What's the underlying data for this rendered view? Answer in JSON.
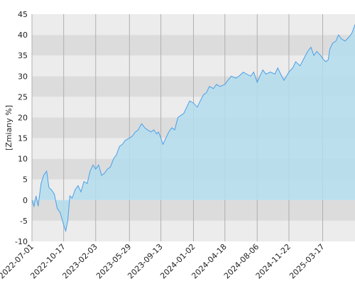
{
  "chart_data": {
    "type": "area",
    "y_label": "[Zmiany %]",
    "x": [
      "2022-07-01",
      "2022-07-08",
      "2022-07-15",
      "2022-07-22",
      "2022-08-01",
      "2022-08-10",
      "2022-08-20",
      "2022-08-28",
      "2022-09-05",
      "2022-09-15",
      "2022-09-25",
      "2022-10-05",
      "2022-10-17",
      "2022-10-24",
      "2022-10-31",
      "2022-11-07",
      "2022-11-15",
      "2022-11-25",
      "2022-12-05",
      "2022-12-15",
      "2022-12-25",
      "2023-01-05",
      "2023-01-15",
      "2023-01-25",
      "2023-02-03",
      "2023-02-13",
      "2023-02-23",
      "2023-03-05",
      "2023-03-15",
      "2023-03-25",
      "2023-04-05",
      "2023-04-15",
      "2023-04-25",
      "2023-05-05",
      "2023-05-15",
      "2023-05-29",
      "2023-06-08",
      "2023-06-18",
      "2023-06-28",
      "2023-07-05",
      "2023-07-10",
      "2023-07-20",
      "2023-07-30",
      "2023-08-10",
      "2023-08-20",
      "2023-08-30",
      "2023-09-05",
      "2023-09-13",
      "2023-09-20",
      "2023-09-30",
      "2023-10-10",
      "2023-10-20",
      "2023-10-30",
      "2023-11-10",
      "2023-11-20",
      "2023-11-30",
      "2023-12-10",
      "2023-12-20",
      "2024-01-02",
      "2024-01-15",
      "2024-01-25",
      "2024-02-05",
      "2024-02-15",
      "2024-02-25",
      "2024-03-10",
      "2024-03-20",
      "2024-04-01",
      "2024-04-18",
      "2024-04-28",
      "2024-05-10",
      "2024-05-25",
      "2024-06-05",
      "2024-06-20",
      "2024-07-01",
      "2024-07-15",
      "2024-07-25",
      "2024-08-06",
      "2024-08-15",
      "2024-08-25",
      "2024-09-05",
      "2024-09-20",
      "2024-10-05",
      "2024-10-15",
      "2024-10-25",
      "2024-11-05",
      "2024-11-22",
      "2024-12-05",
      "2024-12-15",
      "2024-12-30",
      "2025-01-10",
      "2025-01-25",
      "2025-02-05",
      "2025-02-15",
      "2025-02-25",
      "2025-03-10",
      "2025-03-20",
      "2025-03-28",
      "2025-04-05",
      "2025-04-10",
      "2025-04-20",
      "2025-05-01",
      "2025-05-10",
      "2025-05-20",
      "2025-06-01",
      "2025-06-15",
      "2025-06-25",
      "2025-07-05"
    ],
    "values": [
      0,
      -1.5,
      1,
      -1.5,
      4,
      6,
      7,
      3,
      2.5,
      1.5,
      -2,
      -3,
      -6,
      -7.5,
      -5,
      1,
      0.5,
      2.5,
      3.5,
      2,
      4.5,
      4,
      7,
      8.5,
      7.5,
      8.5,
      6,
      6.5,
      7.5,
      8,
      10,
      11,
      13,
      13.5,
      14.5,
      15,
      15.5,
      16.5,
      17,
      18,
      18.5,
      17.5,
      17,
      16.5,
      17,
      16,
      16.5,
      15,
      13.5,
      15,
      16.5,
      17.5,
      17,
      20,
      20.5,
      21,
      22.5,
      24,
      23.5,
      22.5,
      24,
      25.5,
      26,
      27.5,
      27,
      28,
      27.5,
      28,
      29,
      30,
      29.5,
      30,
      31,
      30.5,
      30,
      31,
      28.5,
      30,
      31.5,
      30.5,
      31,
      30.5,
      32,
      30.5,
      29,
      31,
      32,
      33.5,
      32.5,
      34,
      36,
      37,
      35,
      36,
      35,
      34,
      33.5,
      34,
      36.5,
      38,
      38.5,
      40,
      39,
      38.5,
      39.5,
      40.5,
      42.5
    ],
    "color": "#4a9fe6",
    "fill": "#b4ddee",
    "xlim": [
      "2022-07-01",
      "2025-07-05"
    ],
    "xticks": [
      "2022-07-01",
      "2022-10-17",
      "2023-02-03",
      "2023-05-29",
      "2023-09-13",
      "2024-01-02",
      "2024-04-18",
      "2024-08-06",
      "2024-11-22",
      "2025-03-17"
    ],
    "ylim": [
      -10,
      45
    ],
    "yticks": [
      -10,
      -5,
      0,
      5,
      10,
      15,
      20,
      25,
      30,
      35,
      40,
      45
    ],
    "grid": true
  }
}
